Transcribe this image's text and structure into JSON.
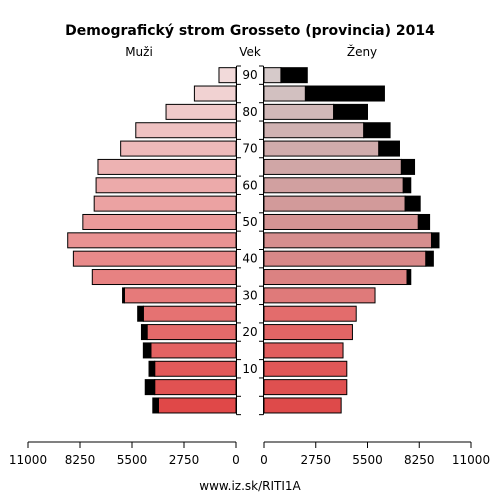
{
  "chart_data": {
    "type": "bar",
    "title": "Demografický strom Grosseto (provincia) 2014",
    "left_label": "Muži",
    "center_label": "Vek",
    "right_label": "Ženy",
    "source": "www.iz.sk/RITI1A",
    "axis_max": 11000,
    "x_ticks": [
      11000,
      8250,
      5500,
      2750,
      0
    ],
    "x_tick_labels": [
      "11000",
      "8250",
      "5500",
      "2750",
      "0"
    ],
    "age_ticks": [
      10,
      20,
      30,
      40,
      50,
      60,
      70,
      80,
      90
    ],
    "age_groups": [
      "0-4",
      "5-9",
      "10-14",
      "15-19",
      "20-24",
      "25-29",
      "30-34",
      "35-39",
      "40-44",
      "45-49",
      "50-54",
      "55-59",
      "60-64",
      "65-69",
      "70-74",
      "75-79",
      "80-84",
      "85-89",
      "90+"
    ],
    "series": [
      {
        "name": "Muži",
        "values": [
          4100,
          4300,
          4300,
          4500,
          4700,
          4900,
          5900,
          7600,
          8600,
          8900,
          8100,
          7500,
          7400,
          7300,
          6100,
          5300,
          3700,
          2200,
          900
        ],
        "excess_values": [
          300,
          500,
          300,
          400,
          300,
          300,
          100,
          0,
          0,
          0,
          0,
          0,
          0,
          0,
          0,
          0,
          0,
          0,
          0
        ],
        "colors": [
          "#e04848",
          "#e15252",
          "#e25a5a",
          "#e36262",
          "#e46a6a",
          "#e57272",
          "#e67a7a",
          "#e78282",
          "#e88a8a",
          "#e99292",
          "#ea9a9a",
          "#eba2a2",
          "#ecaaaa",
          "#edb2b2",
          "#eebaba",
          "#efc2c2",
          "#f0caca",
          "#f1d2d2",
          "#f2dada"
        ]
      },
      {
        "name": "Ženy",
        "values": [
          4100,
          4400,
          4400,
          4200,
          4700,
          4900,
          5900,
          7600,
          8600,
          8900,
          8200,
          7500,
          7400,
          7300,
          6100,
          5300,
          3700,
          2200,
          900
        ],
        "excess_values": [
          0,
          0,
          0,
          0,
          0,
          0,
          0,
          200,
          400,
          400,
          600,
          800,
          400,
          700,
          1100,
          1400,
          1800,
          4200,
          1400
        ],
        "colors": [
          "#de4a4a",
          "#df5050",
          "#e05757",
          "#e15e5e",
          "#e26565",
          "#e36c6c",
          "#df7a7a",
          "#db8282",
          "#d88888",
          "#d68e8e",
          "#d49494",
          "#d29a9a",
          "#d1a0a0",
          "#d0a6a6",
          "#d0acac",
          "#d0b2b2",
          "#d1b8b8",
          "#d2c0c0",
          "#d6caca"
        ]
      }
    ],
    "grid": false
  }
}
